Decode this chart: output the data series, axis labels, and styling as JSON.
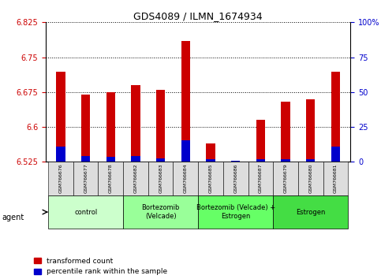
{
  "title": "GDS4089 / ILMN_1674934",
  "samples": [
    "GSM766676",
    "GSM766677",
    "GSM766678",
    "GSM766682",
    "GSM766683",
    "GSM766684",
    "GSM766685",
    "GSM766686",
    "GSM766687",
    "GSM766679",
    "GSM766680",
    "GSM766681"
  ],
  "red_values": [
    6.718,
    6.67,
    6.675,
    6.69,
    6.68,
    6.785,
    6.565,
    6.527,
    6.615,
    6.655,
    6.66,
    6.718
  ],
  "blue_values": [
    6.558,
    6.538,
    6.535,
    6.538,
    6.532,
    6.572,
    6.53,
    6.528,
    6.53,
    6.53,
    6.53,
    6.558
  ],
  "base": 6.525,
  "ylim_left": [
    6.525,
    6.825
  ],
  "ylim_right": [
    0,
    100
  ],
  "yticks_left": [
    6.525,
    6.6,
    6.675,
    6.75,
    6.825
  ],
  "yticks_right": [
    0,
    25,
    50,
    75,
    100
  ],
  "ytick_labels_left": [
    "6.525",
    "6.6",
    "6.675",
    "6.75",
    "6.825"
  ],
  "ytick_labels_right": [
    "0",
    "25",
    "50",
    "75",
    "100%"
  ],
  "groups": [
    {
      "label": "control",
      "start": 0,
      "end": 3,
      "color": "#ccffcc"
    },
    {
      "label": "Bortezomib\n(Velcade)",
      "start": 3,
      "end": 6,
      "color": "#99ff99"
    },
    {
      "label": "Bortezomib (Velcade) +\nEstrogen",
      "start": 6,
      "end": 9,
      "color": "#66ff66"
    },
    {
      "label": "Estrogen",
      "start": 9,
      "end": 12,
      "color": "#44dd44"
    }
  ],
  "agent_label": "agent",
  "legend": [
    {
      "color": "#cc0000",
      "label": "transformed count"
    },
    {
      "color": "#0000cc",
      "label": "percentile rank within the sample"
    }
  ],
  "bar_width": 0.35,
  "red_color": "#cc0000",
  "blue_color": "#0000cc",
  "background_color": "#ffffff",
  "plot_bg_color": "#ffffff",
  "tick_color_left": "#cc0000",
  "tick_color_right": "#0000cc",
  "xticklabel_bg": "#dddddd"
}
